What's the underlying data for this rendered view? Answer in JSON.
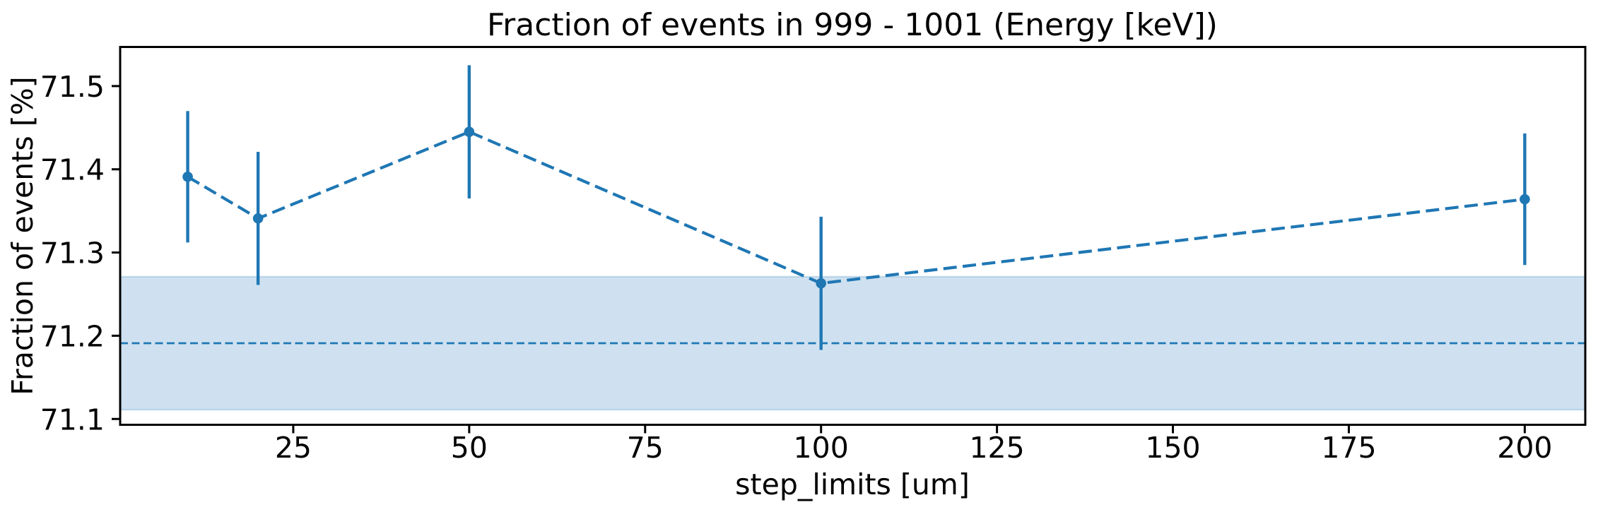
{
  "page": {
    "background_color": "#ffffff"
  },
  "chart_data": {
    "type": "line",
    "subtype": "errorbar-line-with-reference-band",
    "title": "Fraction of events in 999 - 1001 (Energy [keV])",
    "xlabel": "step_limits [um]",
    "ylabel": "Fraction of events [%]",
    "xlim": [
      0.4,
      208.6
    ],
    "ylim": [
      71.093,
      71.547
    ],
    "x_ticks": [
      25,
      50,
      75,
      100,
      125,
      150,
      175,
      200
    ],
    "x_tick_labels": [
      "25",
      "50",
      "75",
      "100",
      "125",
      "150",
      "175",
      "200"
    ],
    "y_ticks": [
      71.1,
      71.2,
      71.3,
      71.4,
      71.5
    ],
    "y_tick_labels": [
      "71.1",
      "71.2",
      "71.3",
      "71.4",
      "71.5"
    ],
    "grid": false,
    "legend": false,
    "series": [
      {
        "name": "fraction-of-events",
        "marker": "point",
        "linestyle": "dashed",
        "color": "#1f77b4",
        "x": [
          10,
          20,
          50,
          100,
          200
        ],
        "y": [
          71.391,
          71.341,
          71.445,
          71.263,
          71.364
        ],
        "yerr": [
          0.079,
          0.08,
          0.08,
          0.08,
          0.079
        ]
      }
    ],
    "reference_band": {
      "center": 71.191,
      "low": 71.111,
      "high": 71.271,
      "line_color": "#1f77b4",
      "line_style": "dashed",
      "fill_color": "#cfe1f0"
    },
    "axis_color": "#000000"
  }
}
